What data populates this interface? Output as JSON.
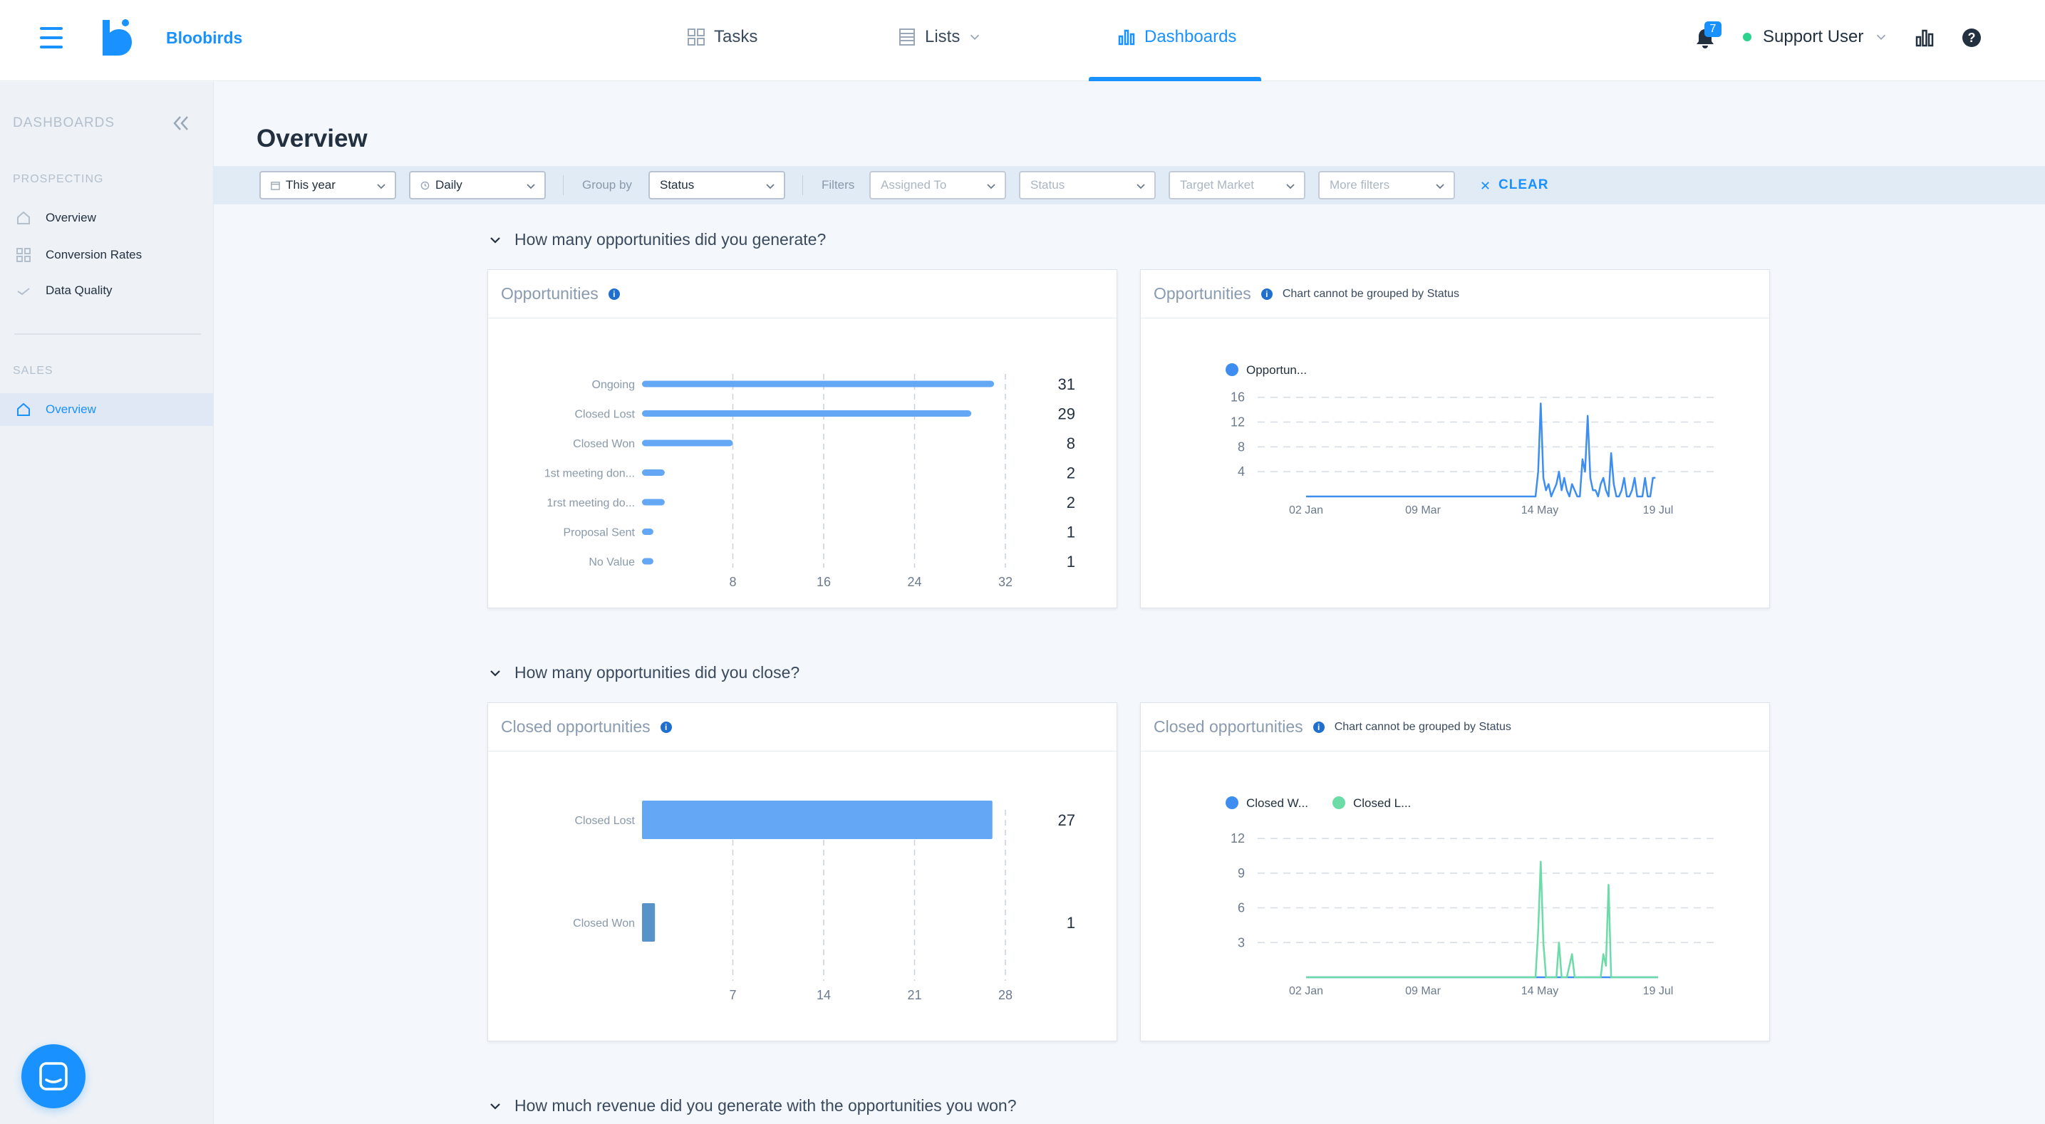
{
  "app": {
    "brand": "Bloobirds"
  },
  "nav": {
    "tasks": "Tasks",
    "lists": "Lists",
    "dashboards": "Dashboards"
  },
  "user": {
    "notifications": "7",
    "name": "Support User"
  },
  "sidebar": {
    "heading": "DASHBOARDS",
    "prospecting_label": "PROSPECTING",
    "prospecting_items": [
      "Overview",
      "Conversion Rates",
      "Data Quality"
    ],
    "sales_label": "SALES",
    "sales_items": [
      "Overview"
    ],
    "active_item": "sales/Overview"
  },
  "page": {
    "title": "Overview"
  },
  "filters": {
    "period": "This year",
    "granularity": "Daily",
    "group_by_label": "Group by",
    "group_by_value": "Status",
    "filters_label": "Filters",
    "assigned_to_placeholder": "Assigned To",
    "status_placeholder": "Status",
    "target_market_placeholder": "Target Market",
    "more_filters_placeholder": "More filters",
    "clear_label": "CLEAR"
  },
  "sections": {
    "q1": "How many opportunities did you generate?",
    "q2": "How many opportunities did you close?",
    "q3": "How much revenue did you generate with the opportunities you won?"
  },
  "cards": {
    "opp_bar_title": "Opportunities",
    "opp_line_title": "Opportunities",
    "opp_line_note": "Chart cannot be grouped by Status",
    "closed_bar_title": "Closed opportunities",
    "closed_line_title": "Closed opportunities",
    "closed_line_note": "Chart cannot be grouped by Status"
  },
  "colors": {
    "accent": "#1991ff",
    "bar": "#64a8f5",
    "bar_dark": "#5792c9",
    "green": "#6cdba7",
    "blue_series": "#3d8ef0"
  },
  "chart_data": [
    {
      "type": "bar",
      "orientation": "horizontal",
      "categories": [
        "Ongoing",
        "Closed Lost",
        "Closed Won",
        "1st meeting don...",
        "1rst meeting do...",
        "Proposal Sent",
        "No Value"
      ],
      "values": [
        31,
        29,
        8,
        2,
        2,
        1,
        1
      ],
      "xticks": [
        8,
        16,
        24,
        32
      ],
      "xlim": [
        0,
        32
      ]
    },
    {
      "type": "line",
      "legend": [
        "Opportun..."
      ],
      "xticks": [
        "02 Jan",
        "09 Mar",
        "14 May",
        "19 Jul"
      ],
      "yticks": [
        4,
        8,
        12,
        16
      ],
      "ylim": [
        0,
        17
      ],
      "series": [
        {
          "name": "Opportun...",
          "points": [
            [
              0,
              0
            ],
            [
              60,
              0
            ],
            [
              120,
              0
            ],
            [
              176,
              0
            ],
            [
              178,
              4
            ],
            [
              180,
              15
            ],
            [
              182,
              3
            ],
            [
              184,
              1
            ],
            [
              186,
              2
            ],
            [
              188,
              0
            ],
            [
              190,
              1
            ],
            [
              192,
              2
            ],
            [
              194,
              4
            ],
            [
              196,
              1
            ],
            [
              198,
              3
            ],
            [
              200,
              1
            ],
            [
              202,
              0
            ],
            [
              204,
              2
            ],
            [
              206,
              1
            ],
            [
              208,
              0
            ],
            [
              210,
              0
            ],
            [
              212,
              6
            ],
            [
              214,
              4
            ],
            [
              216,
              13
            ],
            [
              218,
              3
            ],
            [
              220,
              1
            ],
            [
              222,
              1
            ],
            [
              224,
              0
            ],
            [
              226,
              2
            ],
            [
              228,
              3
            ],
            [
              230,
              1
            ],
            [
              232,
              0
            ],
            [
              234,
              7
            ],
            [
              236,
              2
            ],
            [
              238,
              0
            ],
            [
              240,
              0
            ],
            [
              242,
              1
            ],
            [
              244,
              3
            ],
            [
              246,
              0
            ],
            [
              248,
              0
            ],
            [
              250,
              1
            ],
            [
              252,
              3
            ],
            [
              254,
              0
            ],
            [
              256,
              0
            ],
            [
              258,
              0
            ],
            [
              260,
              3
            ],
            [
              262,
              0
            ],
            [
              264,
              0
            ],
            [
              266,
              3
            ],
            [
              268,
              3
            ]
          ]
        }
      ],
      "xlim": [
        0,
        270
      ]
    },
    {
      "type": "bar",
      "orientation": "horizontal",
      "categories": [
        "Closed Lost",
        "Closed Won"
      ],
      "values": [
        27,
        1
      ],
      "xticks": [
        7,
        14,
        21,
        28
      ],
      "xlim": [
        0,
        28
      ]
    },
    {
      "type": "line",
      "legend": [
        "Closed W...",
        "Closed L..."
      ],
      "xticks": [
        "02 Jan",
        "09 Mar",
        "14 May",
        "19 Jul"
      ],
      "yticks": [
        3,
        6,
        9,
        12
      ],
      "ylim": [
        0,
        12.5
      ],
      "series": [
        {
          "name": "Closed W...",
          "points": [
            [
              0,
              0
            ],
            [
              180,
              0
            ],
            [
              200,
              0
            ],
            [
              230,
              0
            ],
            [
              270,
              0
            ]
          ]
        },
        {
          "name": "Closed L...",
          "points": [
            [
              0,
              0
            ],
            [
              176,
              0
            ],
            [
              178,
              4
            ],
            [
              180,
              10
            ],
            [
              182,
              3
            ],
            [
              184,
              0
            ],
            [
              192,
              0
            ],
            [
              194,
              3
            ],
            [
              196,
              0
            ],
            [
              200,
              0
            ],
            [
              202,
              1
            ],
            [
              204,
              2
            ],
            [
              206,
              0
            ],
            [
              226,
              0
            ],
            [
              228,
              2
            ],
            [
              230,
              1
            ],
            [
              232,
              8
            ],
            [
              234,
              0
            ],
            [
              270,
              0
            ]
          ]
        }
      ],
      "xlim": [
        0,
        270
      ]
    }
  ]
}
